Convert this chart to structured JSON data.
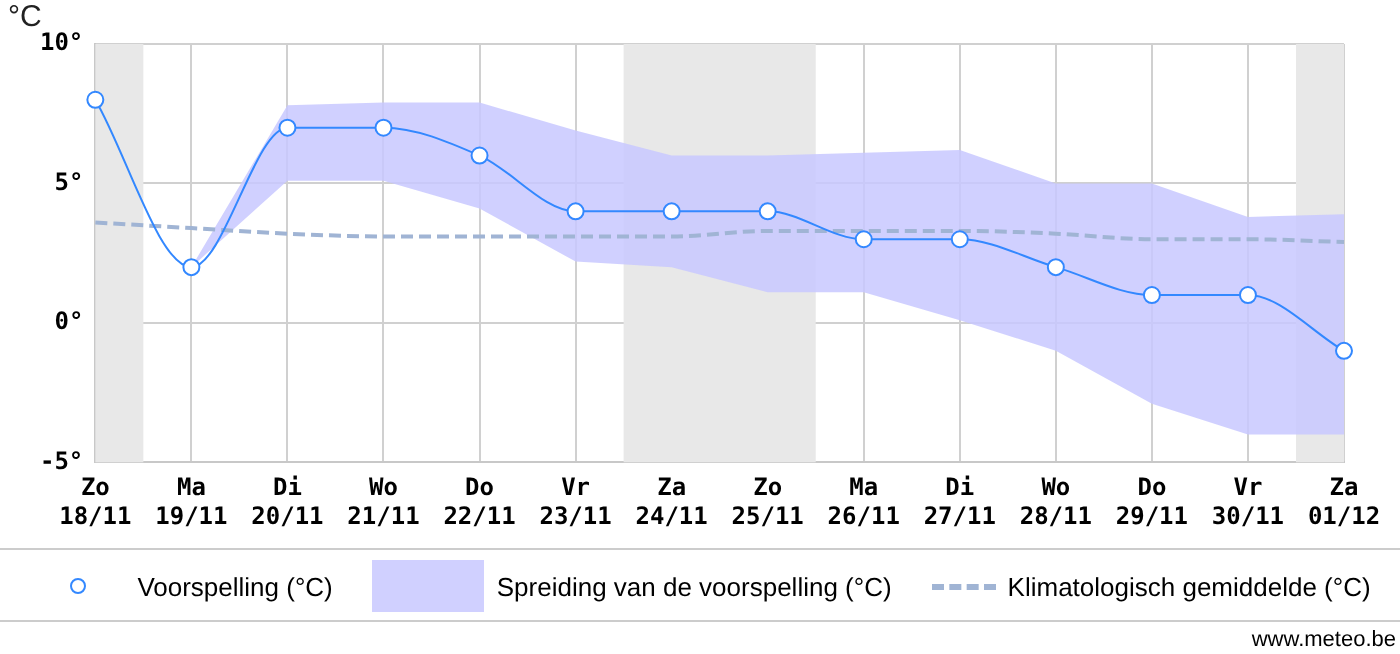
{
  "chart_data": {
    "type": "line",
    "ylabel": "°C",
    "categories": [
      "Zo 18/11",
      "Ma 19/11",
      "Di 20/11",
      "Wo 21/11",
      "Do 22/11",
      "Vr 23/11",
      "Za 24/11",
      "Zo 25/11",
      "Ma 26/11",
      "Di 27/11",
      "Wo 28/11",
      "Do 29/11",
      "Vr 30/11",
      "Za 01/12"
    ],
    "series": [
      {
        "name": "Voorspelling (°C)",
        "type": "line",
        "color": "#3388ff",
        "marker": "circle",
        "line_style": "solid",
        "values": [
          8,
          2,
          7,
          7,
          6,
          4,
          4,
          4,
          3,
          3,
          2,
          1,
          1,
          -1
        ],
        "lower": [
          null,
          2,
          5.1,
          5.1,
          4.1,
          2.2,
          2.0,
          1.1,
          1.1,
          0.1,
          -1.0,
          -2.9,
          -4.0,
          -4.0
        ],
        "upper": [
          null,
          2,
          7.8,
          7.9,
          7.9,
          6.9,
          6.0,
          6.0,
          6.1,
          6.2,
          5.0,
          5.0,
          3.8,
          3.9
        ]
      },
      {
        "name": "Klimatologisch gemiddelde (°C)",
        "type": "line",
        "color": "#a0b4d4",
        "marker": "none",
        "line_style": "dashed",
        "values": [
          3.6,
          3.4,
          3.2,
          3.1,
          3.1,
          3.1,
          3.1,
          3.3,
          3.3,
          3.3,
          3.2,
          3.0,
          3.0,
          2.9
        ]
      }
    ],
    "ylim": [
      -5,
      10
    ],
    "yticks": [
      {
        "value": -5,
        "label": "-5°"
      },
      {
        "value": 0,
        "label": "0°"
      },
      {
        "value": 5,
        "label": "5°"
      },
      {
        "value": 10,
        "label": "10°"
      }
    ],
    "grid": true,
    "legend": "bottom",
    "bands": [
      {
        "axis": "x",
        "from": "Zo 18/11",
        "to": "Zo 18/11",
        "color": "#e8e8e8"
      },
      {
        "axis": "x",
        "from": "Za 24/11",
        "to": "Zo 25/11",
        "color": "#e8e8e8"
      },
      {
        "axis": "x",
        "from": "Za 01/12",
        "to": "Za 01/12",
        "color": "#e8e8e8"
      }
    ],
    "annotations": [
      "Spreiding van de voorspelling (°C)",
      "www.meteo.be"
    ]
  }
}
